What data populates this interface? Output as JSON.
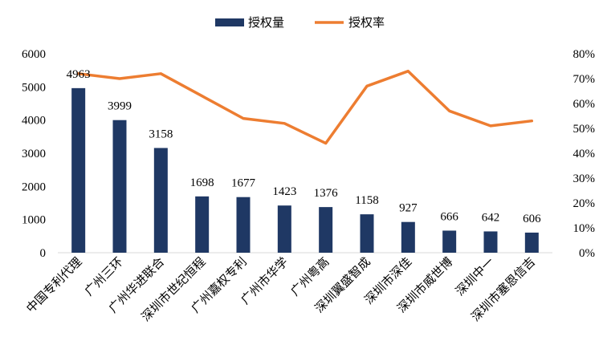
{
  "chart_data": {
    "type": "bar",
    "categories": [
      "中国专利代理",
      "广州三环",
      "广州华进联合",
      "深圳市世纪恒程",
      "广州嘉权专利",
      "广州市华学",
      "广州粤高",
      "深圳翼盛智成",
      "深圳市深佳",
      "深圳市威世博",
      "深圳中一",
      "深圳市塞恩信吉"
    ],
    "series": [
      {
        "name": "授权量",
        "type": "bar",
        "axis": "left",
        "color": "#1f3864",
        "values": [
          4963,
          3999,
          3158,
          1698,
          1677,
          1423,
          1376,
          1158,
          927,
          666,
          642,
          606
        ],
        "labels": [
          "4963",
          "3999",
          "3158",
          "1698",
          "1677",
          "1423",
          "1376",
          "1158",
          "927",
          "666",
          "642",
          "606"
        ]
      },
      {
        "name": "授权率",
        "type": "line",
        "axis": "right",
        "color": "#ed7d31",
        "values": [
          0.72,
          0.7,
          0.72,
          0.63,
          0.54,
          0.52,
          0.44,
          0.67,
          0.73,
          0.57,
          0.51,
          0.53
        ]
      }
    ],
    "y_left": {
      "ylim": [
        0,
        6000
      ],
      "ticks": [
        "0",
        "1000",
        "2000",
        "3000",
        "4000",
        "5000",
        "6000"
      ]
    },
    "y_right": {
      "ylim": [
        0,
        0.8
      ],
      "ticks": [
        "0%",
        "10%",
        "20%",
        "30%",
        "40%",
        "50%",
        "60%",
        "70%",
        "80%"
      ]
    },
    "legend": {
      "position": "top-center",
      "items": [
        "授权量",
        "授权率"
      ]
    },
    "grid": false,
    "title": "",
    "xlabel": "",
    "ylabel": ""
  }
}
